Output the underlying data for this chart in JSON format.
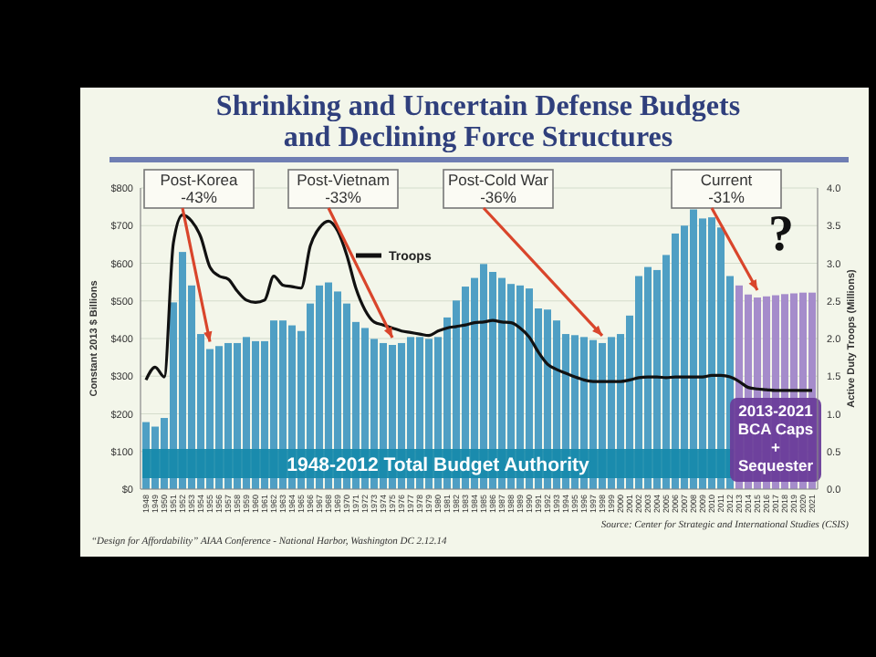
{
  "chart_data": {
    "type": "bar",
    "title": "Shrinking and Uncertain Defense Budgets\nand Declining Force Structures",
    "ylabel": "Constant 2013 $ Billions",
    "y2label": "Active Duty Troops (Millions)",
    "categories": [
      "1948",
      "1949",
      "1950",
      "1951",
      "1952",
      "1953",
      "1954",
      "1955",
      "1956",
      "1957",
      "1958",
      "1959",
      "1960",
      "1961",
      "1962",
      "1963",
      "1964",
      "1965",
      "1966",
      "1967",
      "1968",
      "1969",
      "1970",
      "1971",
      "1972",
      "1973",
      "1974",
      "1975",
      "1976",
      "1977",
      "1978",
      "1979",
      "1980",
      "1981",
      "1982",
      "1983",
      "1984",
      "1985",
      "1986",
      "1987",
      "1988",
      "1989",
      "1990",
      "1991",
      "1992",
      "1993",
      "1994",
      "1995",
      "1996",
      "1997",
      "1998",
      "1999",
      "2000",
      "2001",
      "2002",
      "2003",
      "2004",
      "2005",
      "2006",
      "2007",
      "2008",
      "2009",
      "2010",
      "2011",
      "2012",
      "2013",
      "2014",
      "2015",
      "2016",
      "2017",
      "2018",
      "2019",
      "2020",
      "2021"
    ],
    "series": [
      {
        "colors": [
          "#4f9fc4",
          "#4f9fc4",
          "#4f9fc4",
          "#4f9fc4",
          "#4f9fc4",
          "#4f9fc4",
          "#4f9fc4",
          "#4f9fc4",
          "#4f9fc4",
          "#4f9fc4",
          "#4f9fc4",
          "#4f9fc4",
          "#4f9fc4",
          "#4f9fc4",
          "#4f9fc4",
          "#4f9fc4",
          "#4f9fc4",
          "#4f9fc4",
          "#4f9fc4",
          "#4f9fc4",
          "#4f9fc4",
          "#4f9fc4",
          "#4f9fc4",
          "#4f9fc4",
          "#4f9fc4",
          "#4f9fc4",
          "#4f9fc4",
          "#4f9fc4",
          "#4f9fc4",
          "#4f9fc4",
          "#4f9fc4",
          "#4f9fc4",
          "#4f9fc4",
          "#4f9fc4",
          "#4f9fc4",
          "#4f9fc4",
          "#4f9fc4",
          "#4f9fc4",
          "#4f9fc4",
          "#4f9fc4",
          "#4f9fc4",
          "#4f9fc4",
          "#4f9fc4",
          "#4f9fc4",
          "#4f9fc4",
          "#4f9fc4",
          "#4f9fc4",
          "#4f9fc4",
          "#4f9fc4",
          "#4f9fc4",
          "#4f9fc4",
          "#4f9fc4",
          "#4f9fc4",
          "#4f9fc4",
          "#4f9fc4",
          "#4f9fc4",
          "#4f9fc4",
          "#4f9fc4",
          "#4f9fc4",
          "#4f9fc4",
          "#4f9fc4",
          "#4f9fc4",
          "#4f9fc4",
          "#4f9fc4",
          "#4f9fc4",
          "#a58ccb",
          "#a58ccb",
          "#a58ccb",
          "#a58ccb",
          "#a58ccb",
          "#a58ccb",
          "#a58ccb",
          "#a58ccb",
          "#a58ccb"
        ],
        "values": [
          178,
          166,
          189,
          496,
          630,
          541,
          412,
          372,
          380,
          388,
          388,
          404,
          393,
          393,
          448,
          448,
          435,
          420,
          493,
          541,
          549,
          525,
          493,
          444,
          428,
          399,
          388,
          383,
          388,
          404,
          404,
          399,
          404,
          456,
          501,
          538,
          561,
          598,
          577,
          561,
          545,
          541,
          533,
          480,
          477,
          448,
          412,
          409,
          404,
          396,
          388,
          404,
          412,
          461,
          566,
          590,
          582,
          622,
          679,
          700,
          743,
          719,
          722,
          695,
          566,
          541,
          517,
          509,
          512,
          515,
          518,
          520,
          522,
          522
        ]
      },
      {
        "type": "line",
        "name": "Troops",
        "color": "#111111",
        "axis": "y2",
        "values": [
          1.45,
          1.62,
          1.49,
          3.27,
          3.64,
          3.56,
          3.35,
          2.95,
          2.83,
          2.79,
          2.63,
          2.51,
          2.48,
          2.51,
          2.83,
          2.71,
          2.69,
          2.67,
          3.23,
          3.47,
          3.56,
          3.43,
          3.11,
          2.67,
          2.38,
          2.22,
          2.18,
          2.14,
          2.1,
          2.08,
          2.06,
          2.04,
          2.1,
          2.14,
          2.16,
          2.18,
          2.21,
          2.22,
          2.24,
          2.22,
          2.21,
          2.14,
          2.02,
          1.82,
          1.66,
          1.59,
          1.54,
          1.49,
          1.45,
          1.43,
          1.43,
          1.43,
          1.43,
          1.45,
          1.48,
          1.49,
          1.49,
          1.48,
          1.49,
          1.49,
          1.49,
          1.49,
          1.51,
          1.51,
          1.49,
          1.43,
          1.35,
          1.33,
          1.32,
          1.31,
          1.31,
          1.31,
          1.31,
          1.31
        ]
      }
    ],
    "ylim": [
      0,
      800
    ],
    "yticks": [
      {
        "value": 0,
        "label": "$0"
      },
      {
        "value": 100,
        "label": "$100"
      },
      {
        "value": 200,
        "label": "$200"
      },
      {
        "value": 300,
        "label": "$300"
      },
      {
        "value": 400,
        "label": "$400"
      },
      {
        "value": 500,
        "label": "$500"
      },
      {
        "value": 600,
        "label": "$600"
      },
      {
        "value": 700,
        "label": "$700"
      },
      {
        "value": 800,
        "label": "$800"
      }
    ],
    "y2lim": [
      0,
      4
    ],
    "y2ticks": [
      {
        "value": 0,
        "label": "0.0"
      },
      {
        "value": 0.5,
        "label": "0.5"
      },
      {
        "value": 1,
        "label": "1.0"
      },
      {
        "value": 1.5,
        "label": "1.5"
      },
      {
        "value": 2,
        "label": "2.0"
      },
      {
        "value": 2.5,
        "label": "2.5"
      },
      {
        "value": 3,
        "label": "3.0"
      },
      {
        "value": 3.5,
        "label": "3.5"
      },
      {
        "value": 4,
        "label": "4.0"
      }
    ],
    "grid": "y",
    "legend": "top",
    "bands": [
      {
        "axis": "x",
        "from": "1948",
        "to": "2012",
        "label": "1948-2012 Total Budget Authority",
        "color": "#1689aa"
      },
      {
        "axis": "x",
        "from": "2013",
        "to": "2021",
        "label": "2013-2021\nBCA Caps\n+\nSequester",
        "color": "#6a3d9a"
      }
    ],
    "annotations": [
      {
        "text": "Post-Korea\n-43%",
        "x": "1955",
        "y": 372
      },
      {
        "text": "Post-Vietnam\n-33%",
        "x": "1975",
        "y": 383
      },
      {
        "text": "Post-Cold War\n-36%",
        "x": "1998",
        "y": 388
      },
      {
        "text": "Current\n-31%",
        "x": "2015",
        "y": 509
      },
      "?",
      "“Design for Affordability” AIAA Conference - National Harbor, Washington DC 2.12.14",
      "Source: Center for Strategic and International Studies (CSIS)"
    ]
  }
}
